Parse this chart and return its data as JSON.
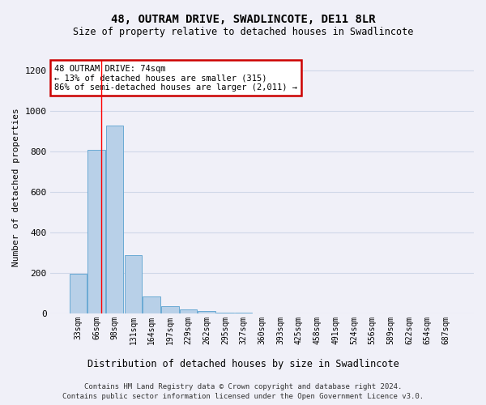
{
  "title": "48, OUTRAM DRIVE, SWADLINCOTE, DE11 8LR",
  "subtitle": "Size of property relative to detached houses in Swadlincote",
  "xlabel": "Distribution of detached houses by size in Swadlincote",
  "ylabel": "Number of detached properties",
  "bar_color": "#b8d0e8",
  "bar_edge_color": "#6aaad4",
  "categories": [
    "33sqm",
    "66sqm",
    "98sqm",
    "131sqm",
    "164sqm",
    "197sqm",
    "229sqm",
    "262sqm",
    "295sqm",
    "327sqm",
    "360sqm",
    "393sqm",
    "425sqm",
    "458sqm",
    "491sqm",
    "524sqm",
    "556sqm",
    "589sqm",
    "622sqm",
    "654sqm",
    "687sqm"
  ],
  "values": [
    195,
    810,
    930,
    290,
    85,
    35,
    20,
    10,
    5,
    2,
    1,
    1,
    0,
    0,
    0,
    0,
    0,
    0,
    0,
    0,
    0
  ],
  "ylim": [
    0,
    1250
  ],
  "yticks": [
    0,
    200,
    400,
    600,
    800,
    1000,
    1200
  ],
  "vline_x": 1.25,
  "annotation_text": "48 OUTRAM DRIVE: 74sqm\n← 13% of detached houses are smaller (315)\n86% of semi-detached houses are larger (2,011) →",
  "annotation_box_color": "#ffffff",
  "annotation_box_edge_color": "#cc0000",
  "footer_line1": "Contains HM Land Registry data © Crown copyright and database right 2024.",
  "footer_line2": "Contains public sector information licensed under the Open Government Licence v3.0.",
  "background_color": "#f0f0f8",
  "grid_color": "#d0d8e8"
}
